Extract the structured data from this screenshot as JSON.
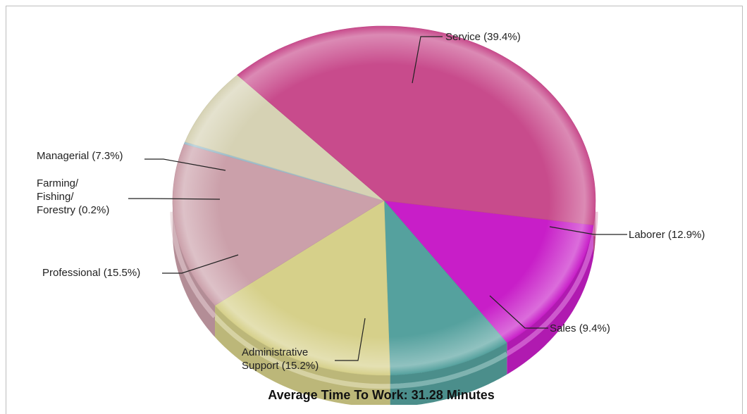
{
  "chart_data": {
    "type": "pie",
    "title": "Average Time To Work: 31.28 Minutes",
    "start_category": "Laborer",
    "slices": [
      {
        "label": "Laborer (12.9%)",
        "name": "Laborer",
        "value": 12.9,
        "color": "#c81ec8"
      },
      {
        "label": "Sales (9.4%)",
        "name": "Sales",
        "value": 9.4,
        "color": "#55a19e"
      },
      {
        "label": "Administrative Support (15.2%)",
        "label_lines": [
          "Administrative",
          "Support (15.2%)"
        ],
        "name": "Administrative Support",
        "value": 15.2,
        "color": "#d6d08a"
      },
      {
        "label": "Professional (15.5%)",
        "name": "Professional",
        "value": 15.5,
        "color": "#cba0aa"
      },
      {
        "label": "Farming/ Fishing/ Forestry (0.2%)",
        "label_lines": [
          "Farming/",
          "Fishing/",
          "Forestry (0.2%)"
        ],
        "name": "Farming/Fishing/Forestry",
        "value": 0.2,
        "color": "#9fbfcc"
      },
      {
        "label": "Managerial (7.3%)",
        "name": "Managerial",
        "value": 7.3,
        "color": "#d6d2b4"
      },
      {
        "label": "Service (39.4%)",
        "name": "Service",
        "value": 39.4,
        "color": "#c84b8c"
      }
    ]
  }
}
